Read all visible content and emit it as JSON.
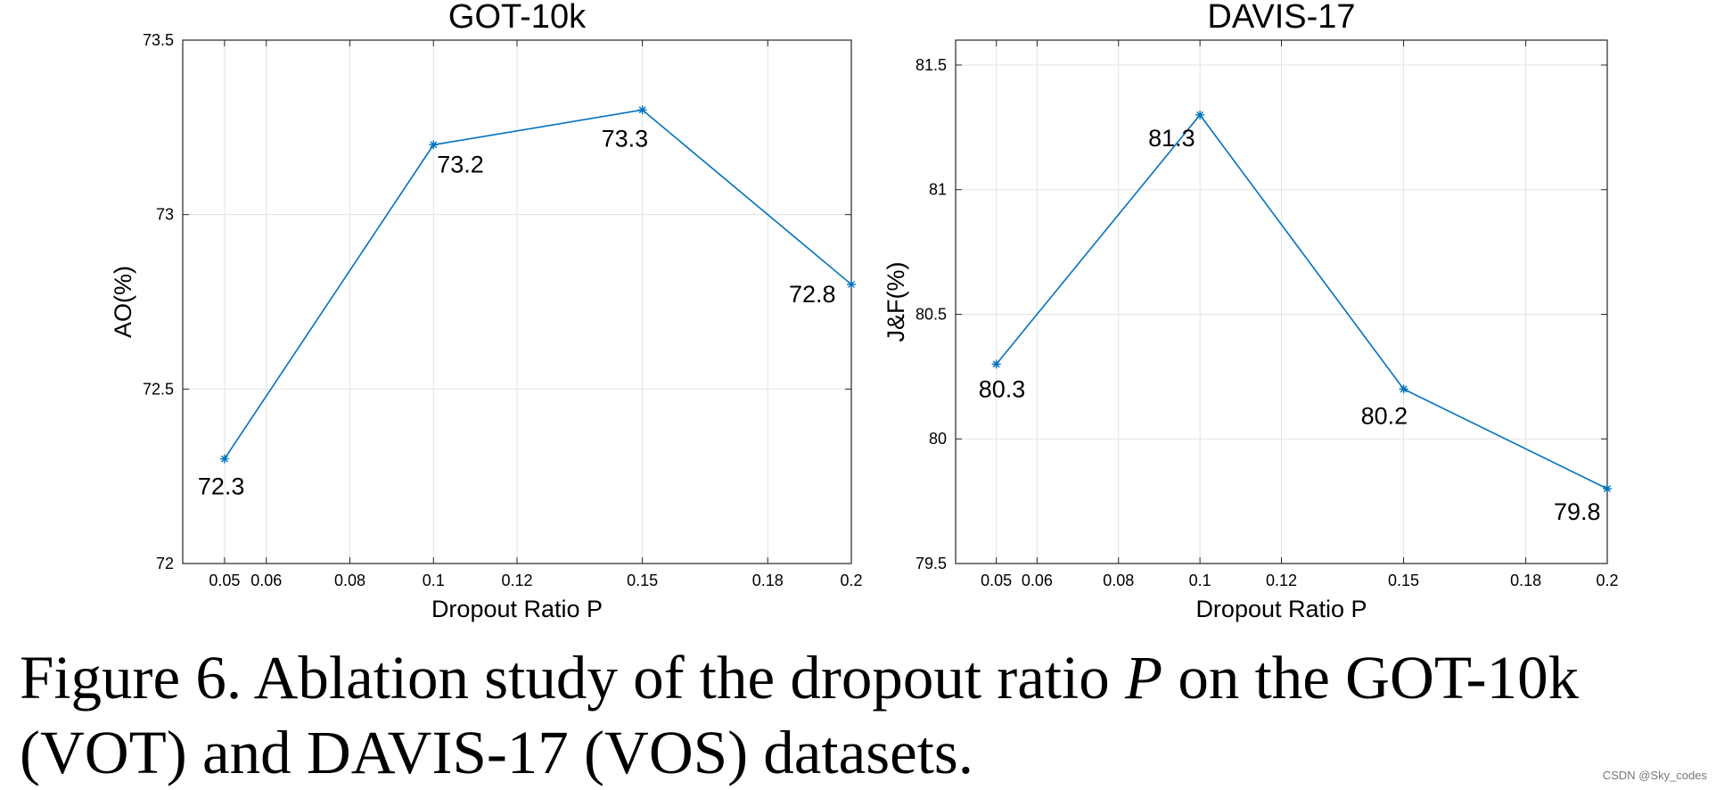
{
  "chart_data": [
    {
      "type": "line",
      "title": "GOT-10k",
      "xlabel": "Dropout Ratio P",
      "ylabel": "AO(%)",
      "xlim": [
        0.04,
        0.2
      ],
      "ylim": [
        72,
        73.5
      ],
      "xticks": [
        0.05,
        0.06,
        0.08,
        0.1,
        0.12,
        0.15,
        0.18,
        0.2
      ],
      "xtick_labels": [
        "0.05",
        "0.06",
        "0.08",
        "0.1",
        "0.12",
        "0.15",
        "0.18",
        "0.2"
      ],
      "yticks": [
        72,
        72.5,
        73,
        73.5
      ],
      "ytick_labels": [
        "72",
        "72.5",
        "73",
        "73.5"
      ],
      "grid": true,
      "color": "#0072BD",
      "x": [
        0.05,
        0.1,
        0.15,
        0.2
      ],
      "y": [
        72.3,
        73.2,
        73.3,
        72.8
      ],
      "data_labels": [
        "72.3",
        "73.2",
        "73.3",
        "72.8"
      ]
    },
    {
      "type": "line",
      "title": "DAVIS-17",
      "xlabel": "Dropout Ratio P",
      "ylabel": "J&F(%)",
      "xlim": [
        0.04,
        0.2
      ],
      "ylim": [
        79.5,
        81.6
      ],
      "xticks": [
        0.05,
        0.06,
        0.08,
        0.1,
        0.12,
        0.15,
        0.18,
        0.2
      ],
      "xtick_labels": [
        "0.05",
        "0.06",
        "0.08",
        "0.1",
        "0.12",
        "0.15",
        "0.18",
        "0.2"
      ],
      "yticks": [
        79.5,
        80,
        80.5,
        81,
        81.5
      ],
      "ytick_labels": [
        "79.5",
        "80",
        "80.5",
        "81",
        "81.5"
      ],
      "grid": true,
      "color": "#0072BD",
      "x": [
        0.05,
        0.1,
        0.15,
        0.2
      ],
      "y": [
        80.3,
        81.3,
        80.2,
        79.8
      ],
      "data_labels": [
        "80.3",
        "81.3",
        "80.2",
        "79.8"
      ]
    }
  ],
  "caption": {
    "prefix": "Figure 6.  Ablation study of the dropout ratio ",
    "variable": "P",
    "suffix": " on the GOT-10k (VOT) and DAVIS-17 (VOS) datasets."
  },
  "watermark": "CSDN @Sky_codes"
}
